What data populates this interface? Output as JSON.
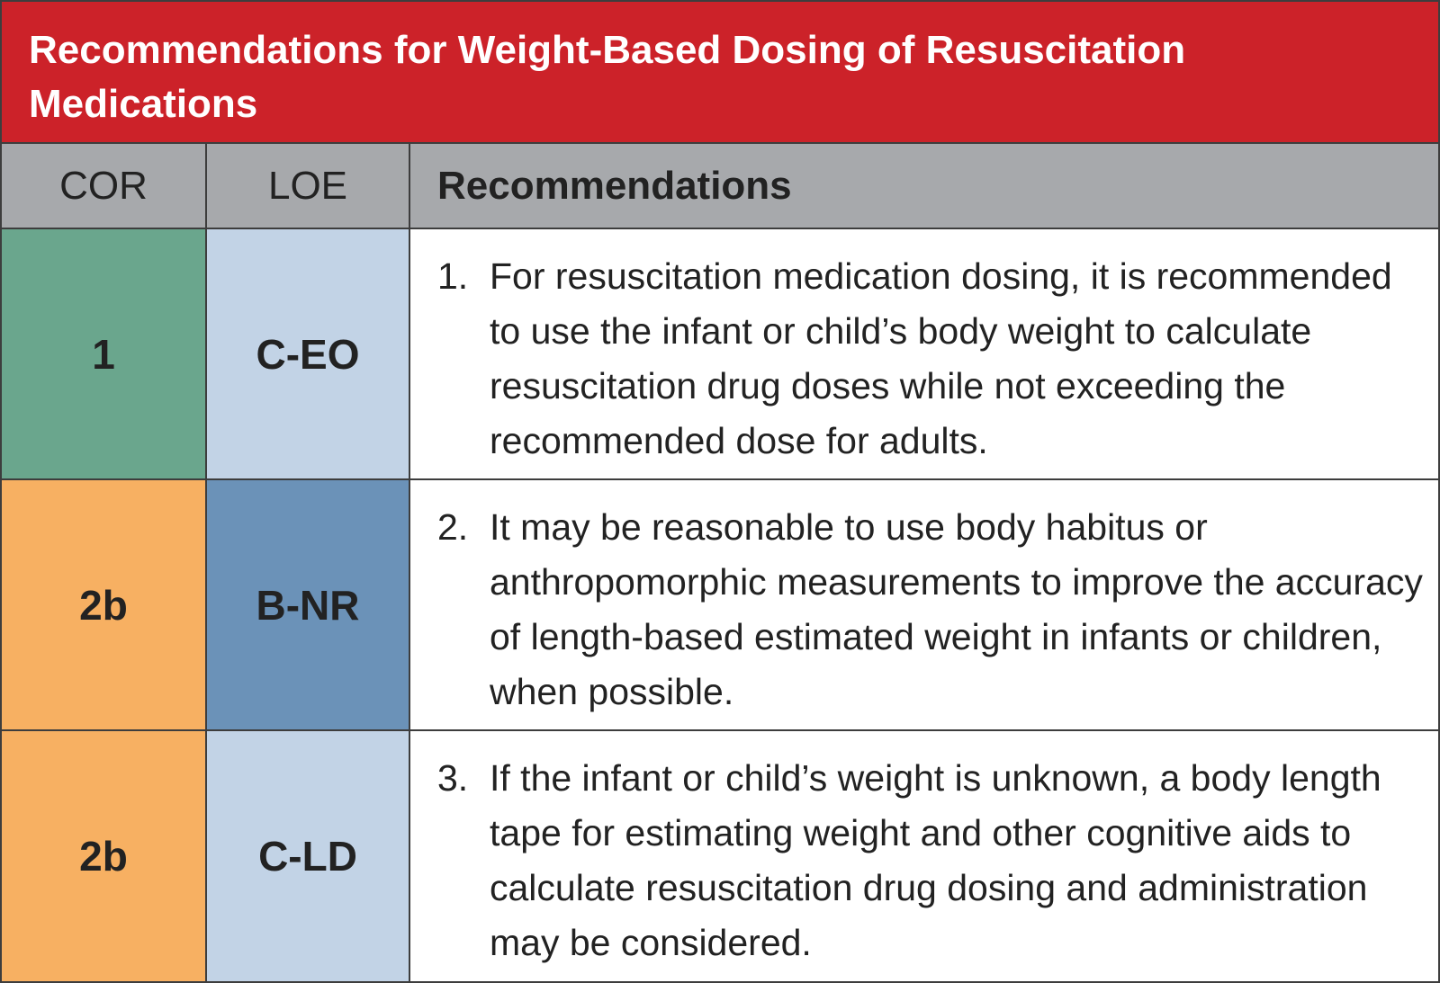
{
  "title": "Recommendations for Weight-Based Dosing of Resuscitation Medications",
  "headers": {
    "cor": "COR",
    "loe": "LOE",
    "recommendations": "Recommendations"
  },
  "colors": {
    "title_bg": "#cc2229",
    "header_bg": "#a7a9ac",
    "cor_1": "#6aa68d",
    "cor_2b": "#f7b062",
    "loe_c": "#c2d3e6",
    "loe_b": "#6b92b8"
  },
  "rows": [
    {
      "cor": "1",
      "loe": "C-EO",
      "number": "1.",
      "text": "For resuscitation medication dosing, it is recommended to use the infant or child’s body weight to calculate resuscitation drug doses while not exceeding the recommended dose for adults.",
      "cor_color": "#6aa68d",
      "loe_color": "#c2d3e6"
    },
    {
      "cor": "2b",
      "loe": "B-NR",
      "number": "2.",
      "text": "It may be reasonable to use body habitus or anthropomorphic measurements to improve the accuracy of length-based estimated weight in infants or children, when possible.",
      "cor_color": "#f7b062",
      "loe_color": "#6b92b8"
    },
    {
      "cor": "2b",
      "loe": "C-LD",
      "number": "3.",
      "text": "If the infant or child’s weight is unknown, a body length tape for estimating weight and other cognitive aids to calculate resuscitation drug dosing and administration may be considered.",
      "cor_color": "#f7b062",
      "loe_color": "#c2d3e6"
    }
  ]
}
